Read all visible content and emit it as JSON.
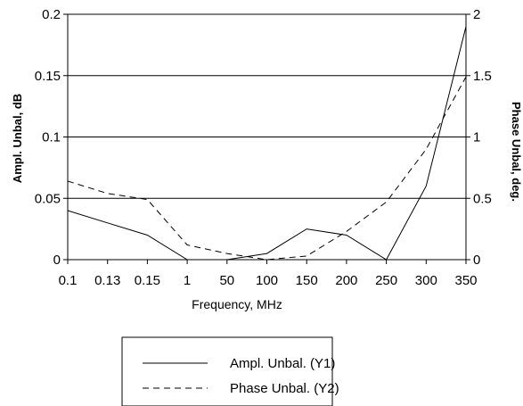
{
  "chart_data": {
    "type": "line",
    "title": "",
    "xlabel": "Frequency, MHz",
    "ylabel": "Ampl. Unbal, dB",
    "y2label": "Phase Unbal, deg.",
    "categories": [
      "0.1",
      "0.13",
      "0.15",
      "1",
      "50",
      "100",
      "150",
      "200",
      "250",
      "300",
      "350"
    ],
    "ylim": [
      0,
      0.2
    ],
    "y2lim": [
      0,
      2
    ],
    "yticks": [
      "0",
      "0.05",
      "0.1",
      "0.15",
      "0.2"
    ],
    "y2ticks": [
      "0",
      "0.5",
      "1",
      "1.5",
      "2"
    ],
    "grid": true,
    "legend_position": "bottom",
    "series": [
      {
        "name": "Ampl. Unbal. (Y1)",
        "axis": "y1",
        "style": "solid",
        "color": "#000000",
        "values": [
          0.04,
          0.03,
          0.02,
          0.0,
          0.0,
          0.005,
          0.025,
          0.02,
          0.0,
          0.06,
          0.19
        ]
      },
      {
        "name": "Phase Unbal. (Y2)",
        "axis": "y2",
        "style": "dashed",
        "color": "#000000",
        "values": [
          0.64,
          0.54,
          0.49,
          0.12,
          0.05,
          0.0,
          0.03,
          0.23,
          0.47,
          0.9,
          1.49
        ]
      }
    ]
  }
}
